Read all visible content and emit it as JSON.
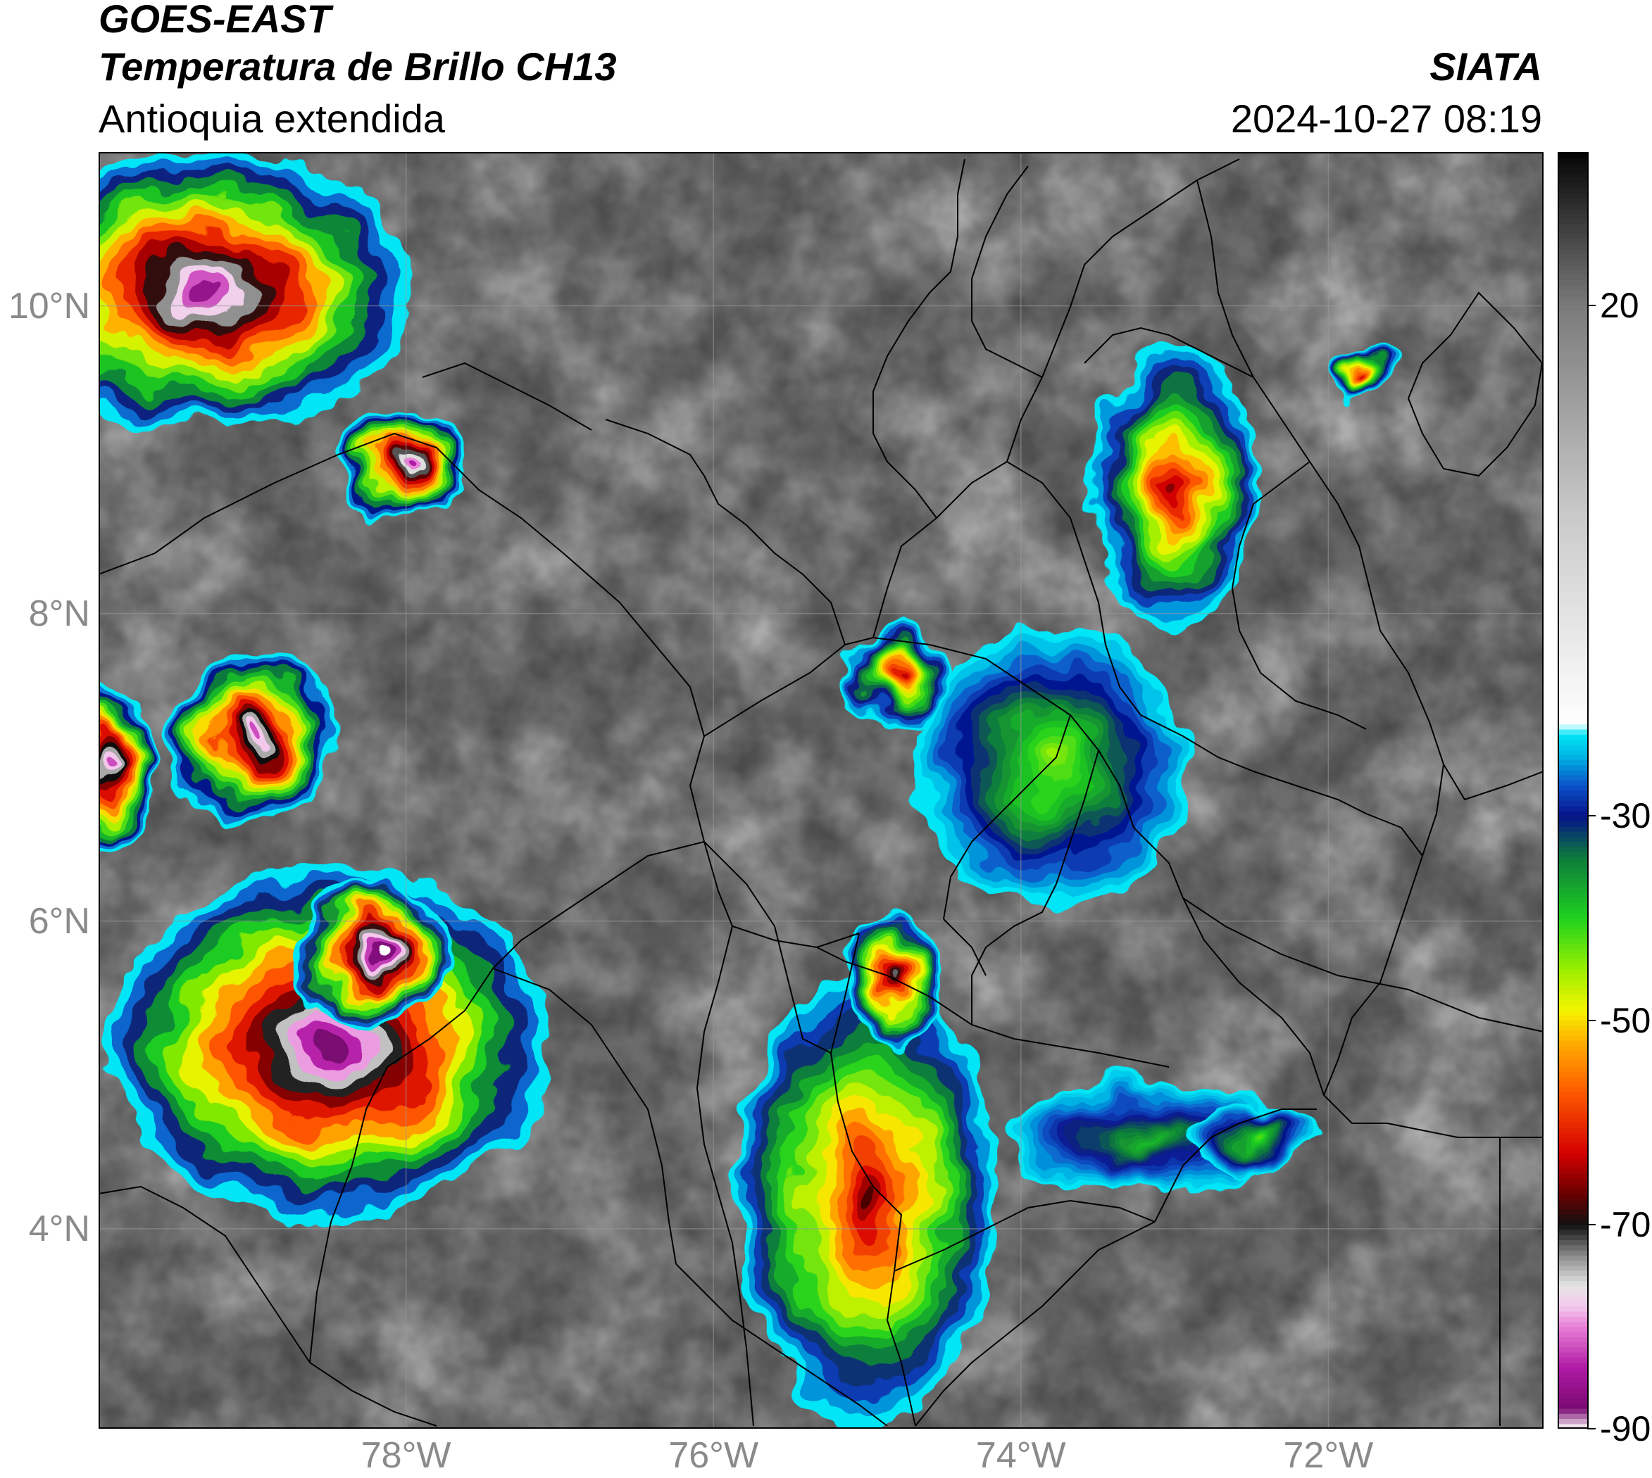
{
  "header": {
    "satellite": "GOES-EAST",
    "product": "Temperatura de Brillo CH13",
    "region": "Antioquia extendida",
    "organization": "SIATA",
    "timestamp": "2024-10-27 08:19"
  },
  "map": {
    "lon_range": [
      -80.0,
      -70.6
    ],
    "lat_range": [
      2.7,
      11.0
    ],
    "lat_ticks": [
      {
        "value": 10,
        "label": "10°N"
      },
      {
        "value": 8,
        "label": "8°N"
      },
      {
        "value": 6,
        "label": "6°N"
      },
      {
        "value": 4,
        "label": "4°N"
      }
    ],
    "lon_ticks": [
      {
        "value": -78,
        "label": "78°W"
      },
      {
        "value": -76,
        "label": "76°W"
      },
      {
        "value": -74,
        "label": "74°W"
      },
      {
        "value": -72,
        "label": "72°W"
      }
    ],
    "grid": true,
    "storm_cells": [
      {
        "lon": -78.5,
        "lat": 5.2,
        "rx": 1.45,
        "ry": 1.15,
        "tmin": -88
      },
      {
        "lon": -78.2,
        "lat": 5.8,
        "rx": 0.5,
        "ry": 0.45,
        "tmin": -92
      },
      {
        "lon": -79.3,
        "lat": 10.1,
        "rx": 1.35,
        "ry": 0.9,
        "tmin": -86
      },
      {
        "lon": -78.0,
        "lat": 9.0,
        "rx": 0.45,
        "ry": 0.38,
        "tmin": -84
      },
      {
        "lon": -79.0,
        "lat": 7.2,
        "rx": 0.55,
        "ry": 0.55,
        "tmin": -82
      },
      {
        "lon": -79.95,
        "lat": 7.0,
        "rx": 0.3,
        "ry": 0.55,
        "tmin": -82
      },
      {
        "lon": -75.0,
        "lat": 4.2,
        "rx": 0.85,
        "ry": 1.5,
        "tmin": -68
      },
      {
        "lon": -74.8,
        "lat": 5.6,
        "rx": 0.35,
        "ry": 0.4,
        "tmin": -72
      },
      {
        "lon": -73.8,
        "lat": 7.0,
        "rx": 0.9,
        "ry": 0.9,
        "tmin": -45
      },
      {
        "lon": -73.0,
        "lat": 8.8,
        "rx": 0.55,
        "ry": 0.9,
        "tmin": -66
      },
      {
        "lon": -74.8,
        "lat": 7.6,
        "rx": 0.35,
        "ry": 0.35,
        "tmin": -64
      },
      {
        "lon": -73.2,
        "lat": 4.6,
        "rx": 0.9,
        "ry": 0.35,
        "tmin": -38
      },
      {
        "lon": -72.5,
        "lat": 4.6,
        "rx": 0.45,
        "ry": 0.2,
        "tmin": -42
      },
      {
        "lon": -71.8,
        "lat": 9.6,
        "rx": 0.2,
        "ry": 0.15,
        "tmin": -62
      }
    ]
  },
  "colorbar": {
    "min": -90,
    "max": 35,
    "ticks": [
      {
        "value": 20,
        "label": "20"
      },
      {
        "value": -30,
        "label": "-30"
      },
      {
        "value": -50,
        "label": "-50"
      },
      {
        "value": -70,
        "label": "-70"
      },
      {
        "value": -90,
        "label": "-90"
      }
    ],
    "stops": [
      {
        "value": -90,
        "color": "#ffffff"
      },
      {
        "value": -88,
        "color": "#7a0a72"
      },
      {
        "value": -84,
        "color": "#b01aa5"
      },
      {
        "value": -80,
        "color": "#e87fd8"
      },
      {
        "value": -78,
        "color": "#f3c8ec"
      },
      {
        "value": -76,
        "color": "#e6e6e6"
      },
      {
        "value": -73,
        "color": "#8a8a8a"
      },
      {
        "value": -70,
        "color": "#111111"
      },
      {
        "value": -67,
        "color": "#6a0000"
      },
      {
        "value": -63,
        "color": "#d40000"
      },
      {
        "value": -57,
        "color": "#ff5a00"
      },
      {
        "value": -52,
        "color": "#ffb000"
      },
      {
        "value": -49,
        "color": "#f5f500"
      },
      {
        "value": -45,
        "color": "#9aef00"
      },
      {
        "value": -40,
        "color": "#1fd21f"
      },
      {
        "value": -34,
        "color": "#0d7a3c"
      },
      {
        "value": -30,
        "color": "#06128a"
      },
      {
        "value": -27,
        "color": "#0a52c8"
      },
      {
        "value": -24,
        "color": "#00b8e6"
      },
      {
        "value": -22,
        "color": "#00e6f6"
      },
      {
        "value": -21,
        "color": "#ffffff"
      },
      {
        "value": 0,
        "color": "#c8c8c8"
      },
      {
        "value": 20,
        "color": "#7a7a7a"
      },
      {
        "value": 35,
        "color": "#050505"
      }
    ]
  },
  "colors": {
    "background_gray": "#6c6c6c",
    "border": "#000000",
    "tick_label": "#8a8a8a",
    "gridline": "#9a9a9a"
  }
}
